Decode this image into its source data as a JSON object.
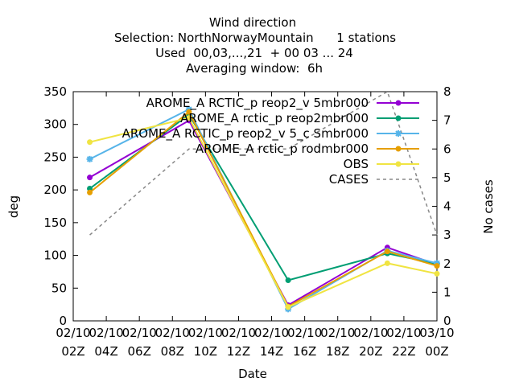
{
  "chart_data": {
    "type": "line",
    "title_lines": [
      "Wind direction",
      "Selection: NorthNorwayMountain      1 stations",
      "Used  00,03,...,21  + 00 03 ... 24",
      "Averaging window:  6h"
    ],
    "xlabel": "Date",
    "ylabel": "deg",
    "y2label": "No cases",
    "ylim": [
      0,
      350
    ],
    "y2lim": [
      0,
      8
    ],
    "yticks": [
      "0",
      "50",
      "100",
      "150",
      "200",
      "250",
      "300",
      "350"
    ],
    "y2ticks": [
      "0",
      "1",
      "2",
      "3",
      "4",
      "5",
      "6",
      "7",
      "8"
    ],
    "xticks": [
      [
        "02/10",
        "02Z"
      ],
      [
        "02/10",
        "04Z"
      ],
      [
        "02/10",
        "06Z"
      ],
      [
        "02/10",
        "08Z"
      ],
      [
        "02/10",
        "10Z"
      ],
      [
        "02/10",
        "12Z"
      ],
      [
        "02/10",
        "14Z"
      ],
      [
        "02/10",
        "16Z"
      ],
      [
        "02/10",
        "18Z"
      ],
      [
        "02/10",
        "20Z"
      ],
      [
        "02/10",
        "22Z"
      ],
      [
        "03/10",
        "00Z"
      ]
    ],
    "x_hours": [
      3,
      9,
      15,
      21,
      24
    ],
    "grid": false,
    "legend_position": "top-right",
    "series": [
      {
        "name": "AROME_ARCTIC_preop2_v5mbr000",
        "legend_label": "AROME_A RCTIC_p reop2_v 5mbr000",
        "color": "#9400d3",
        "marker": "filled-circle",
        "axis": "y",
        "values": [
          219,
          306,
          24,
          112,
          86
        ]
      },
      {
        "name": "AROME_Arctic_preop2mbr000",
        "legend_label": "AROME_A rctic_p reop2mbr000",
        "color": "#009e73",
        "marker": "filled-circle",
        "axis": "y",
        "values": [
          202,
          315,
          62,
          103,
          87
        ]
      },
      {
        "name": "AROME_ARCTIC_preop2_v5_cSmbr000",
        "legend_label": "AROME_A RCTIC_p reop2_v 5_c Smbr000",
        "color": "#56b4e9",
        "marker": "star",
        "axis": "y",
        "values": [
          247,
          323,
          18,
          107,
          88
        ]
      },
      {
        "name": "AROME_Arctic_prodmbr000",
        "legend_label": "AROME_A rctic_p rodmbr000",
        "color": "#e69f00",
        "marker": "filled-circle",
        "axis": "y",
        "values": [
          196,
          319,
          22,
          106,
          84
        ]
      },
      {
        "name": "OBS",
        "legend_label": "OBS",
        "color": "#f0e442",
        "marker": "filled-circle",
        "axis": "y",
        "values": [
          273,
          310,
          21,
          88,
          72
        ]
      },
      {
        "name": "CASES",
        "legend_label": "CASES",
        "color": "#888888",
        "marker": "none",
        "dashed": true,
        "axis": "y2",
        "x_hours": [
          3,
          9,
          15,
          21,
          24
        ],
        "values": [
          3,
          6,
          6,
          8,
          3
        ]
      }
    ]
  }
}
